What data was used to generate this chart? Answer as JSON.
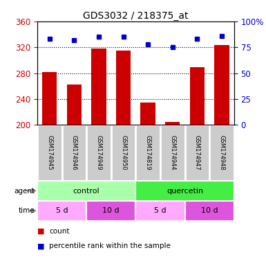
{
  "title": "GDS3032 / 218375_at",
  "samples": [
    "GSM174945",
    "GSM174946",
    "GSM174949",
    "GSM174950",
    "GSM174819",
    "GSM174944",
    "GSM174947",
    "GSM174948"
  ],
  "counts": [
    282,
    262,
    318,
    315,
    235,
    205,
    289,
    323
  ],
  "percentiles": [
    83,
    82,
    85,
    85,
    78,
    75,
    83,
    86
  ],
  "ylim_left": [
    200,
    360
  ],
  "yticks_left": [
    200,
    240,
    280,
    320,
    360
  ],
  "ylim_right": [
    0,
    100
  ],
  "yticks_right": [
    0,
    25,
    50,
    75,
    100
  ],
  "ytick_right_labels": [
    "0",
    "25",
    "50",
    "75",
    "100%"
  ],
  "bar_color": "#cc0000",
  "dot_color": "#0000cc",
  "bar_width": 0.6,
  "agent_groups": [
    {
      "label": "control",
      "start": 0,
      "end": 4,
      "color": "#aaffaa"
    },
    {
      "label": "quercetin",
      "start": 4,
      "end": 8,
      "color": "#44ee44"
    }
  ],
  "time_groups": [
    {
      "label": "5 d",
      "start": 0,
      "end": 2,
      "color": "#ffaaff"
    },
    {
      "label": "10 d",
      "start": 2,
      "end": 4,
      "color": "#dd55dd"
    },
    {
      "label": "5 d",
      "start": 4,
      "end": 6,
      "color": "#ffaaff"
    },
    {
      "label": "10 d",
      "start": 6,
      "end": 8,
      "color": "#dd55dd"
    }
  ],
  "left_axis_color": "#cc0000",
  "right_axis_color": "#0000cc",
  "sample_box_color": "#cccccc",
  "sample_box_edge": "#ffffff",
  "grid_yticks": [
    240,
    280,
    320
  ],
  "legend_items": [
    {
      "color": "#cc0000",
      "label": "count"
    },
    {
      "color": "#0000cc",
      "label": "percentile rank within the sample"
    }
  ]
}
